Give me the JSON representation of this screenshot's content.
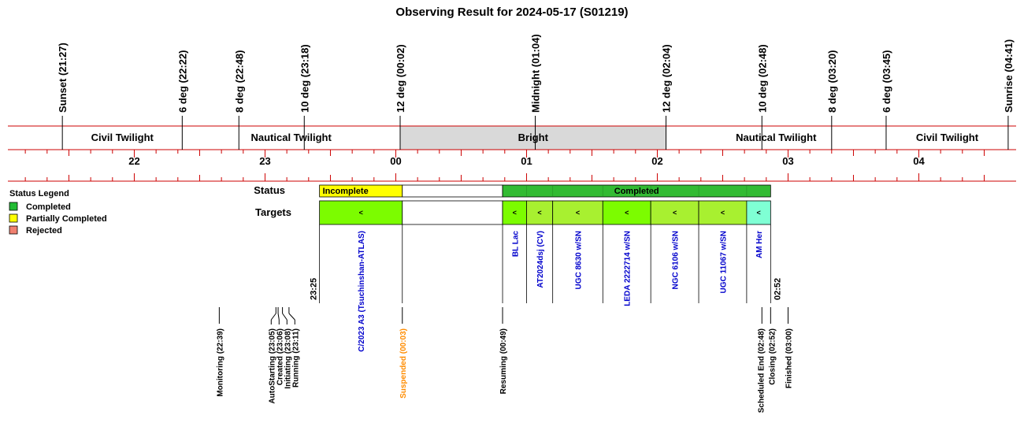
{
  "title": "Observing Result for 2024-05-17 (S01219)",
  "twilight_events": [
    {
      "label": "Sunset (21:27)",
      "time": "21:27"
    },
    {
      "label": "6 deg (22:22)",
      "time": "22:22"
    },
    {
      "label": "8 deg (22:48)",
      "time": "22:48"
    },
    {
      "label": "10 deg (23:18)",
      "time": "23:18"
    },
    {
      "label": "12 deg (00:02)",
      "time": "00:02"
    },
    {
      "label": "Midnight (01:04)",
      "time": "01:04"
    },
    {
      "label": "12 deg (02:04)",
      "time": "02:04"
    },
    {
      "label": "10 deg (02:48)",
      "time": "02:48"
    },
    {
      "label": "8 deg (03:20)",
      "time": "03:20"
    },
    {
      "label": "6 deg (03:45)",
      "time": "03:45"
    },
    {
      "label": "Sunrise (04:41)",
      "time": "04:41"
    }
  ],
  "twilight_bands": [
    {
      "label": "Civil Twilight",
      "start": "21:27",
      "end": "22:22",
      "shaded": false
    },
    {
      "label": "Nautical Twilight",
      "start": "22:22",
      "end": "00:02",
      "shaded": false
    },
    {
      "label": "Bright",
      "start": "00:02",
      "end": "02:04",
      "shaded": true
    },
    {
      "label": "Nautical Twilight",
      "start": "02:04",
      "end": "03:45",
      "shaded": false
    },
    {
      "label": "Civil Twilight",
      "start": "03:45",
      "end": "04:41",
      "shaded": false
    }
  ],
  "hour_labels": [
    {
      "label": "22",
      "time": "22:00"
    },
    {
      "label": "23",
      "time": "23:00"
    },
    {
      "label": "00",
      "time": "00:00"
    },
    {
      "label": "01",
      "time": "01:00"
    },
    {
      "label": "02",
      "time": "02:00"
    },
    {
      "label": "03",
      "time": "03:00"
    },
    {
      "label": "04",
      "time": "04:00"
    }
  ],
  "legend": {
    "title": "Status Legend",
    "items": [
      {
        "label": "Completed",
        "color": "#22bb33"
      },
      {
        "label": "Partially Completed",
        "color": "#ffff00"
      },
      {
        "label": "Rejected",
        "color": "#f08070"
      }
    ]
  },
  "status_row": {
    "label": "Status",
    "segments": [
      {
        "label": "Incomplete",
        "start": "23:25",
        "end": "00:03",
        "color": "#ffff00"
      },
      {
        "label": "",
        "start": "00:03",
        "end": "00:49",
        "color": "#ffffff"
      },
      {
        "label": "Completed",
        "start": "00:49",
        "end": "02:52",
        "color": "#33bb33"
      }
    ]
  },
  "targets_row": {
    "label": "Targets",
    "mark": "<",
    "start_label": "23:25",
    "end_label": "02:52",
    "targets": [
      {
        "name": "C/2023 A3 (Tsuchinshan-ATLAS)",
        "start": "23:25",
        "end": "00:03",
        "color": "#7cfc00"
      },
      {
        "name": "",
        "start": "00:03",
        "end": "00:49",
        "color": "#ffffff"
      },
      {
        "name": "BL Lac",
        "start": "00:49",
        "end": "01:00",
        "color": "#7cfc00"
      },
      {
        "name": "AT2024dsj (CV)",
        "start": "01:00",
        "end": "01:12",
        "color": "#a8f030"
      },
      {
        "name": "UGC 8630 w/SN",
        "start": "01:12",
        "end": "01:35",
        "color": "#a8f030"
      },
      {
        "name": "LEDA 2222714 w/SN",
        "start": "01:35",
        "end": "01:57",
        "color": "#7cfc00"
      },
      {
        "name": "NGC 6106 w/SN",
        "start": "01:57",
        "end": "02:19",
        "color": "#a8f030"
      },
      {
        "name": "UGC 11067 w/SN",
        "start": "02:19",
        "end": "02:41",
        "color": "#a8f030"
      },
      {
        "name": "AM Her",
        "start": "02:41",
        "end": "02:52",
        "color": "#7fffd4"
      }
    ]
  },
  "system_events": [
    {
      "label": "Monitoring (22:39)",
      "time": "22:39",
      "color": "#000000"
    },
    {
      "label": "AutoStarting (23:05)",
      "time": "23:05",
      "color": "#000000"
    },
    {
      "label": "Created (23:06)",
      "time": "23:06",
      "color": "#000000"
    },
    {
      "label": "Initiating (23:08)",
      "time": "23:08",
      "color": "#000000"
    },
    {
      "label": "Running (23:11)",
      "time": "23:11",
      "color": "#000000"
    },
    {
      "label": "Suspended (00:03)",
      "time": "00:03",
      "color": "#ff8c00"
    },
    {
      "label": "Resuming (00:49)",
      "time": "00:49",
      "color": "#000000"
    },
    {
      "label": "Scheduled End (02:48)",
      "time": "02:48",
      "color": "#000000"
    },
    {
      "label": "Closing (02:52)",
      "time": "02:52",
      "color": "#000000"
    },
    {
      "label": "Finished (03:00)",
      "time": "03:00",
      "color": "#000000"
    }
  ],
  "colors": {
    "axis_line": "#cc0000",
    "bright_fill": "#d9d9d9",
    "target_text": "#0000cc",
    "suspended": "#ff8c00"
  }
}
